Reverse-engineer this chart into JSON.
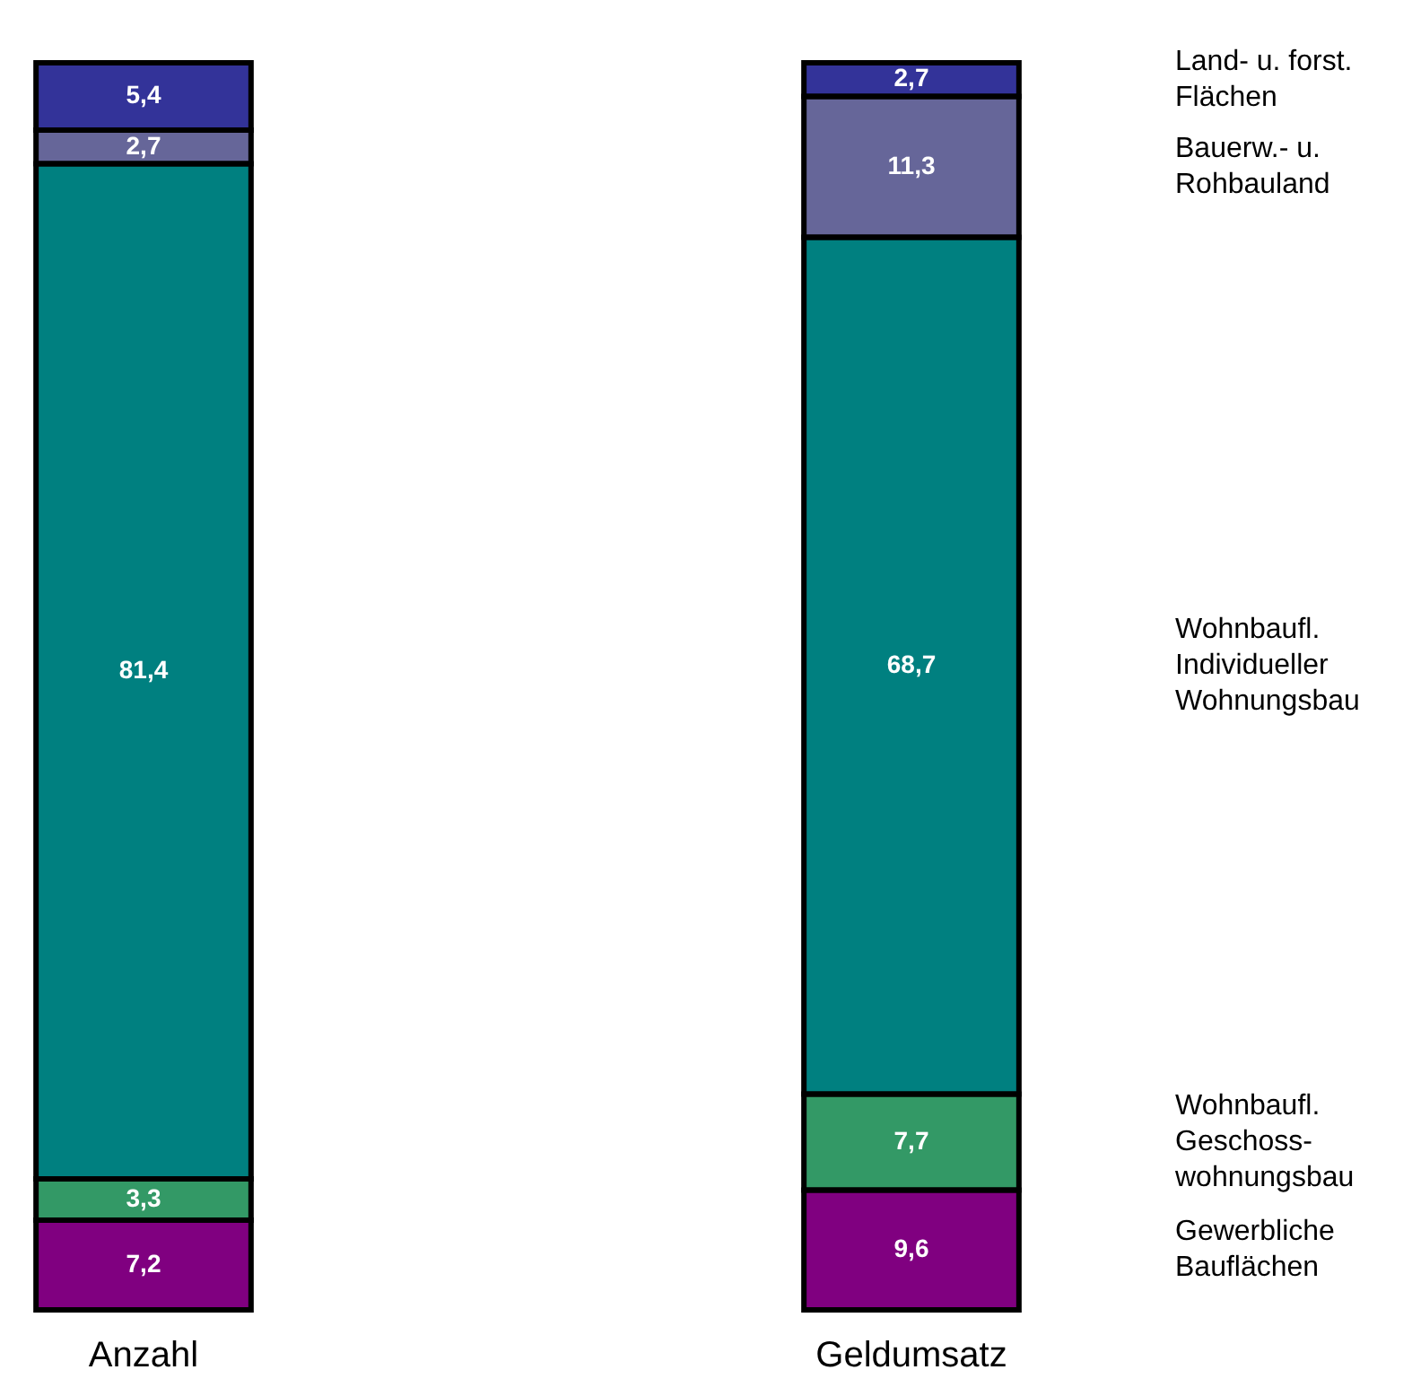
{
  "chart_data": {
    "type": "bar",
    "stacked": true,
    "legend": "right",
    "categories": [
      "Anzahl",
      "Geldumsatz"
    ],
    "series": [
      {
        "name": "Gewerbliche Bauflächen",
        "color": "#800080",
        "values": [
          7.2,
          9.6
        ],
        "value_labels": [
          "7,2",
          "9,6"
        ]
      },
      {
        "name": "Wohnbaufl. Geschoss- wohnungsbau",
        "color": "#339966",
        "values": [
          3.3,
          7.7
        ],
        "value_labels": [
          "3,3",
          "7,7"
        ]
      },
      {
        "name": "Wohnbaufl. Individueller Wohnungsbau",
        "color": "#008080",
        "values": [
          81.4,
          68.7
        ],
        "value_labels": [
          "81,4",
          "68,7"
        ]
      },
      {
        "name": "Bauerw.- u. Rohbauland",
        "color": "#666699",
        "values": [
          2.7,
          11.3
        ],
        "value_labels": [
          "2,7",
          "11,3"
        ]
      },
      {
        "name": "Land- u. forst. Flächen",
        "color": "#333399",
        "values": [
          5.4,
          2.7
        ],
        "value_labels": [
          "5,4",
          "2,7"
        ]
      }
    ]
  }
}
